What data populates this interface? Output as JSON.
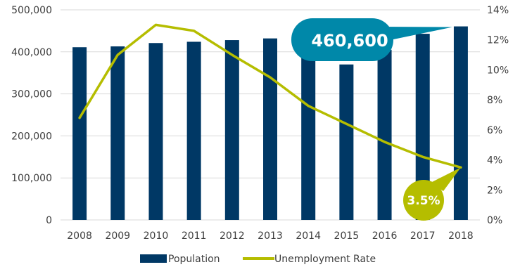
{
  "chart_data": {
    "type": "bar",
    "categories": [
      "2008",
      "2009",
      "2010",
      "2011",
      "2012",
      "2013",
      "2014",
      "2015",
      "2016",
      "2017",
      "2018"
    ],
    "series": [
      {
        "name": "Population",
        "type": "bar",
        "axis": "left",
        "color": "#003865",
        "values": [
          411000,
          413000,
          421000,
          424000,
          428000,
          432000,
          398000,
          370000,
          405000,
          443000,
          460600
        ]
      },
      {
        "name": "Unemployment Rate",
        "type": "line",
        "axis": "right",
        "color": "#b5bd00",
        "values": [
          6.8,
          11.0,
          13.0,
          12.6,
          11.0,
          9.5,
          7.6,
          6.4,
          5.2,
          4.2,
          3.5
        ]
      }
    ],
    "ylim_left": [
      0,
      500000
    ],
    "ylim_right": [
      0,
      14
    ],
    "yticks_left": [
      "0",
      "100,000",
      "200,000",
      "300,000",
      "400,000",
      "500,000"
    ],
    "yticks_right": [
      "0%",
      "2%",
      "4%",
      "6%",
      "8%",
      "10%",
      "12%",
      "14%"
    ],
    "gridlines": true,
    "legend_position": "bottom",
    "callouts": [
      {
        "label": "460,600",
        "target": "Population",
        "category": "2018",
        "color": "#0088a9"
      },
      {
        "label": "3.5%",
        "target": "Unemployment Rate",
        "category": "2018",
        "color": "#b5bd00"
      }
    ]
  },
  "legend": {
    "population_label": "Population",
    "unemployment_label": "Unemployment Rate"
  }
}
